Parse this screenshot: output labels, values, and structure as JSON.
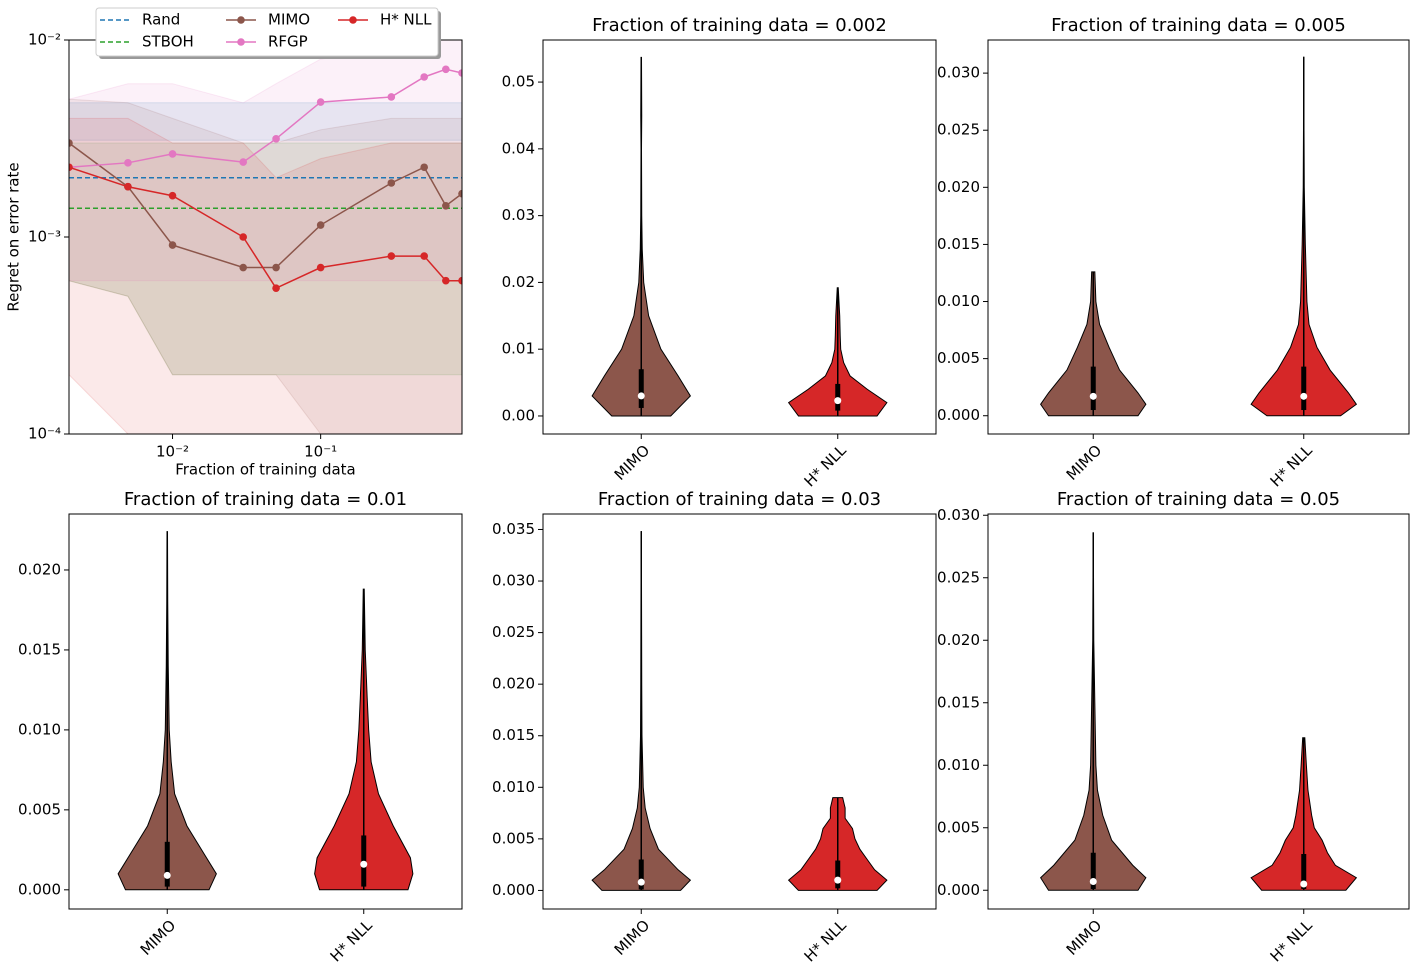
{
  "chart_data": [
    {
      "type": "line",
      "xlabel": "Fraction of training data",
      "ylabel": "Regret on error rate",
      "xscale": "log",
      "yscale": "log",
      "xlim": [
        0.002,
        0.9
      ],
      "ylim": [
        0.0001,
        0.01
      ],
      "xticks": [
        {
          "value": 0.01,
          "label": "10⁻²"
        },
        {
          "value": 0.1,
          "label": "10⁻¹"
        }
      ],
      "yticks": [
        {
          "value": 0.0001,
          "label": "10⁻⁴"
        },
        {
          "value": 0.001,
          "label": "10⁻³"
        },
        {
          "value": 0.01,
          "label": "10⁻²"
        }
      ],
      "legend": "upper center",
      "x": [
        0.002,
        0.005,
        0.01,
        0.03,
        0.05,
        0.1,
        0.3,
        0.5,
        0.7,
        0.9
      ],
      "series": [
        {
          "name": "Rand",
          "color": "#1f77b4",
          "style": "dashed",
          "marker": false,
          "values": [
            0.002,
            0.002,
            0.002,
            0.002,
            0.002,
            0.002,
            0.002,
            0.002,
            0.002,
            0.002
          ],
          "lower": [
            0.0031,
            0.0031,
            0.0031,
            0.0031,
            0.0031,
            0.0031,
            0.0031,
            0.0031,
            0.0031,
            0.0031
          ],
          "upper": [
            0.0048,
            0.0048,
            0.0048,
            0.0048,
            0.0048,
            0.0048,
            0.0048,
            0.0048,
            0.0048,
            0.0048
          ]
        },
        {
          "name": "STBOH",
          "color": "#2ca02c",
          "style": "dashed",
          "marker": false,
          "values": [
            0.0014,
            0.0014,
            0.0014,
            0.0014,
            0.0014,
            0.0014,
            0.0014,
            0.0014,
            0.0014,
            0.0014
          ],
          "lower": [
            0.0006,
            0.0005,
            0.0002,
            0.0002,
            0.0002,
            0.0002,
            0.0002,
            0.0002,
            0.0002,
            0.0002
          ],
          "upper": [
            0.003,
            0.003,
            0.003,
            0.003,
            0.003,
            0.003,
            0.003,
            0.003,
            0.003,
            0.003
          ]
        },
        {
          "name": "MIMO",
          "color": "#8c564b",
          "style": "solid",
          "marker": true,
          "values": [
            0.003,
            0.0018,
            0.00091,
            0.0007,
            0.0007,
            0.00115,
            0.00188,
            0.00226,
            0.00144,
            0.00166
          ],
          "lower": [
            0.0006,
            0.0005,
            0.0002,
            0.0002,
            0.0002,
            0.0001,
            0.0001,
            0.0001,
            0.0001,
            0.0001
          ],
          "upper": [
            0.005,
            0.0048,
            0.004,
            0.003,
            0.003,
            0.0035,
            0.004,
            0.004,
            0.004,
            0.004
          ]
        },
        {
          "name": "RFGP",
          "color": "#e377c2",
          "style": "solid",
          "marker": true,
          "values": [
            0.00226,
            0.00238,
            0.00264,
            0.0024,
            0.00315,
            0.00484,
            0.00514,
            0.00649,
            0.0071,
            0.0068
          ],
          "lower": [
            0.0006,
            0.0006,
            0.0006,
            0.0006,
            0.0006,
            0.0006,
            0.0006,
            0.0006,
            0.0006,
            0.0006
          ],
          "upper": [
            0.005,
            0.006,
            0.006,
            0.0048,
            0.006,
            0.008,
            0.009,
            0.01,
            0.01,
            0.01
          ]
        },
        {
          "name": "H* NLL",
          "color": "#d62728",
          "style": "solid",
          "marker": true,
          "values": [
            0.00226,
            0.0018,
            0.00162,
            0.001,
            0.00055,
            0.0007,
            0.0008,
            0.0008,
            0.0006,
            0.0006
          ],
          "lower": [
            0.0002,
            0.0001,
            0.0001,
            0.0001,
            0.0001,
            0.0001,
            0.0001,
            0.0001,
            0.0001,
            0.0001
          ],
          "upper": [
            0.004,
            0.004,
            0.003,
            0.003,
            0.002,
            0.0025,
            0.003,
            0.003,
            0.003,
            0.003
          ]
        }
      ]
    },
    {
      "type": "violin",
      "title": "Fraction of training data = 0.002",
      "categories": [
        "MIMO",
        "H* NLL"
      ],
      "ylim": [
        -0.0027,
        0.0563
      ],
      "yticks": [
        {
          "value": 0,
          "label": "0.00"
        },
        0.01,
        0.02,
        0.03,
        0.04,
        0.05
      ],
      "series": [
        {
          "color": "#8c564b",
          "min": 0,
          "q1": 0.0012,
          "median": 0.003,
          "q3": 0.007,
          "max": 0.0537,
          "kde_y": [
            0,
            0.003,
            0.006,
            0.01,
            0.015,
            0.02,
            0.025,
            0.03,
            0.04,
            0.045,
            0.0537
          ],
          "kde_width": [
            0.6,
            1,
            0.75,
            0.4,
            0.15,
            0.05,
            0.02,
            0.01,
            0.005,
            0.01,
            0.005
          ]
        },
        {
          "color": "#d62728",
          "min": 0,
          "q1": 0.0008,
          "median": 0.0023,
          "q3": 0.0048,
          "max": 0.0192,
          "kde_y": [
            0,
            0.002,
            0.004,
            0.006,
            0.008,
            0.01,
            0.012,
            0.015,
            0.0192
          ],
          "kde_width": [
            0.8,
            1,
            0.6,
            0.25,
            0.12,
            0.06,
            0.05,
            0.04,
            0.01
          ]
        }
      ]
    },
    {
      "type": "violin",
      "title": "Fraction of training data = 0.005",
      "categories": [
        "MIMO",
        "H* NLL"
      ],
      "ylim": [
        -0.0016,
        0.0329
      ],
      "yticks": [
        {
          "value": 0,
          "label": "0.000"
        },
        0.005,
        {
          "value": 0.01,
          "label": "0.010"
        },
        0.015,
        {
          "value": 0.02,
          "label": "0.020"
        },
        0.025,
        {
          "value": 0.03,
          "label": "0.030"
        }
      ],
      "series": [
        {
          "color": "#8c564b",
          "min": 0,
          "q1": 0.0005,
          "median": 0.0017,
          "q3": 0.0043,
          "max": 0.0126,
          "kde_y": [
            0,
            0.001,
            0.002,
            0.004,
            0.006,
            0.008,
            0.01,
            0.0126
          ],
          "kde_width": [
            0.85,
            1,
            0.85,
            0.5,
            0.3,
            0.12,
            0.05,
            0.03
          ]
        },
        {
          "color": "#d62728",
          "min": 0,
          "q1": 0.0005,
          "median": 0.0017,
          "q3": 0.0043,
          "max": 0.0314,
          "kde_y": [
            0,
            0.001,
            0.002,
            0.004,
            0.006,
            0.008,
            0.01,
            0.015,
            0.02,
            0.025,
            0.0314
          ],
          "kde_width": [
            0.7,
            1,
            0.85,
            0.5,
            0.25,
            0.1,
            0.06,
            0.03,
            0.01,
            0.005,
            0.003
          ]
        }
      ]
    },
    {
      "type": "violin",
      "title": "Fraction of training data = 0.01",
      "categories": [
        "MIMO",
        "H* NLL"
      ],
      "ylim": [
        -0.0012,
        0.0235
      ],
      "yticks": [
        {
          "value": 0,
          "label": "0.000"
        },
        0.005,
        {
          "value": 0.01,
          "label": "0.010"
        },
        0.015,
        {
          "value": 0.02,
          "label": "0.020"
        }
      ],
      "series": [
        {
          "color": "#8c564b",
          "min": 0,
          "q1": 0.0002,
          "median": 0.0009,
          "q3": 0.003,
          "max": 0.0224,
          "kde_y": [
            0,
            0.001,
            0.002,
            0.004,
            0.006,
            0.008,
            0.01,
            0.014,
            0.018,
            0.0224
          ],
          "kde_width": [
            0.85,
            1,
            0.8,
            0.4,
            0.15,
            0.08,
            0.04,
            0.02,
            0.01,
            0.005
          ]
        },
        {
          "color": "#d62728",
          "min": 0,
          "q1": 0.0002,
          "median": 0.0016,
          "q3": 0.0034,
          "max": 0.0188,
          "kde_y": [
            0,
            0.001,
            0.002,
            0.004,
            0.006,
            0.008,
            0.01,
            0.012,
            0.015,
            0.0188
          ],
          "kde_width": [
            0.9,
            1,
            0.95,
            0.6,
            0.3,
            0.15,
            0.1,
            0.07,
            0.03,
            0.01
          ]
        }
      ]
    },
    {
      "type": "violin",
      "title": "Fraction of training data = 0.03",
      "categories": [
        "MIMO",
        "H* NLL"
      ],
      "ylim": [
        -0.0018,
        0.0365
      ],
      "yticks": [
        {
          "value": 0,
          "label": "0.000"
        },
        0.005,
        {
          "value": 0.01,
          "label": "0.010"
        },
        0.015,
        {
          "value": 0.02,
          "label": "0.020"
        },
        0.025,
        {
          "value": 0.03,
          "label": "0.030"
        },
        0.035
      ],
      "series": [
        {
          "color": "#8c564b",
          "min": 0,
          "q1": 0.0001,
          "median": 0.0008,
          "q3": 0.003,
          "max": 0.0348,
          "kde_y": [
            0,
            0.001,
            0.002,
            0.004,
            0.006,
            0.008,
            0.01,
            0.015,
            0.02,
            0.03,
            0.0348
          ],
          "kde_width": [
            0.8,
            1,
            0.75,
            0.35,
            0.18,
            0.08,
            0.04,
            0.015,
            0.01,
            0.005,
            0.003
          ]
        },
        {
          "color": "#d62728",
          "min": 0,
          "q1": 0.0002,
          "median": 0.001,
          "q3": 0.0029,
          "max": 0.009,
          "kde_y": [
            0,
            0.001,
            0.002,
            0.003,
            0.004,
            0.005,
            0.006,
            0.007,
            0.008,
            0.009
          ],
          "kde_width": [
            0.8,
            1,
            0.75,
            0.6,
            0.45,
            0.35,
            0.3,
            0.15,
            0.15,
            0.1
          ]
        }
      ]
    },
    {
      "type": "violin",
      "title": "Fraction of training data = 0.05",
      "categories": [
        "MIMO",
        "H* NLL"
      ],
      "ylim": [
        -0.0015,
        0.0301
      ],
      "yticks": [
        {
          "value": 0,
          "label": "0.000"
        },
        0.005,
        {
          "value": 0.01,
          "label": "0.010"
        },
        0.015,
        {
          "value": 0.02,
          "label": "0.020"
        },
        0.025,
        {
          "value": 0.03,
          "label": "0.030"
        }
      ],
      "series": [
        {
          "color": "#8c564b",
          "min": 0,
          "q1": 0.0001,
          "median": 0.0007,
          "q3": 0.003,
          "max": 0.0286,
          "kde_y": [
            0,
            0.001,
            0.002,
            0.004,
            0.006,
            0.008,
            0.01,
            0.015,
            0.02,
            0.025,
            0.0286
          ],
          "kde_width": [
            0.85,
            1,
            0.75,
            0.35,
            0.18,
            0.08,
            0.05,
            0.03,
            0.01,
            0.005,
            0.003
          ]
        },
        {
          "color": "#d62728",
          "min": 0,
          "q1": 0.0001,
          "median": 0.0005,
          "q3": 0.0029,
          "max": 0.0122,
          "kde_y": [
            0,
            0.001,
            0.002,
            0.003,
            0.004,
            0.005,
            0.006,
            0.008,
            0.01,
            0.0122
          ],
          "kde_width": [
            0.8,
            1,
            0.6,
            0.45,
            0.35,
            0.2,
            0.15,
            0.08,
            0.05,
            0.02
          ]
        }
      ]
    }
  ]
}
